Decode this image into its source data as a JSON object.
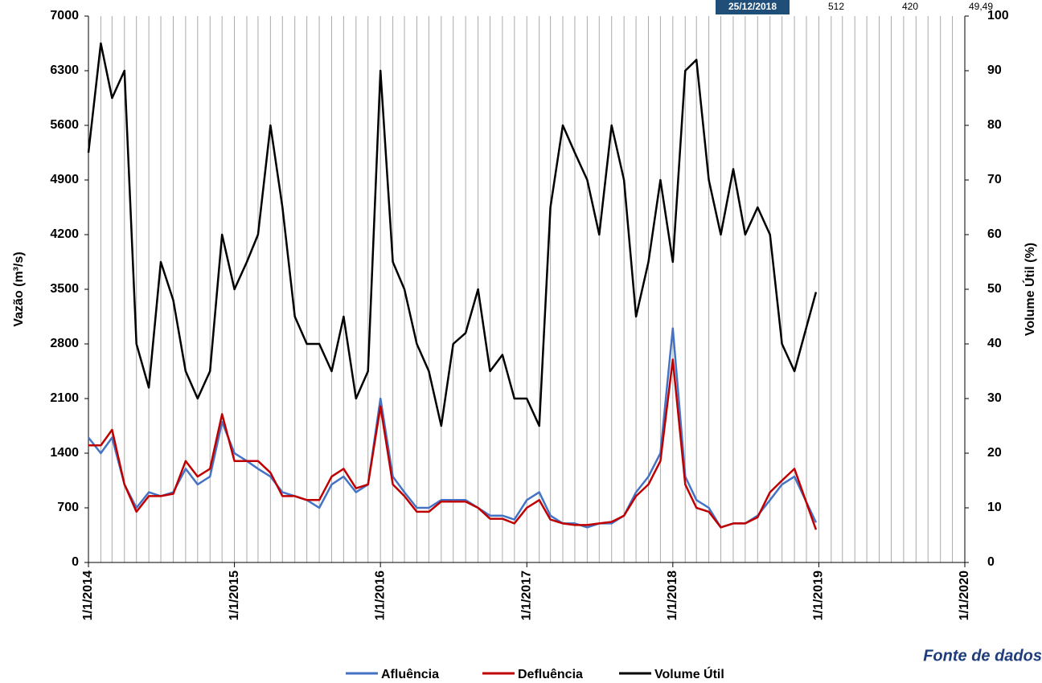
{
  "chart_data": {
    "type": "line",
    "y_label": "Vazão (m³/s)",
    "y2_label": "Volume Útil (%)",
    "annotation": "Fonte de dados",
    "readout": {
      "date": "25/12/2018",
      "values": [
        512,
        420,
        49.49
      ],
      "value_labels": [
        "512",
        "420",
        "49,49"
      ]
    },
    "x": [
      "2014-01-01",
      "2014-02-01",
      "2014-03-01",
      "2014-04-01",
      "2014-05-01",
      "2014-06-01",
      "2014-07-01",
      "2014-08-01",
      "2014-09-01",
      "2014-10-01",
      "2014-11-01",
      "2014-12-01",
      "2015-01-01",
      "2015-02-01",
      "2015-03-01",
      "2015-04-01",
      "2015-05-01",
      "2015-06-01",
      "2015-07-01",
      "2015-08-01",
      "2015-09-01",
      "2015-10-01",
      "2015-11-01",
      "2015-12-01",
      "2016-01-01",
      "2016-02-01",
      "2016-03-01",
      "2016-04-01",
      "2016-05-01",
      "2016-06-01",
      "2016-07-01",
      "2016-08-01",
      "2016-09-01",
      "2016-10-01",
      "2016-11-01",
      "2016-12-01",
      "2017-01-01",
      "2017-02-01",
      "2017-03-01",
      "2017-04-01",
      "2017-05-01",
      "2017-06-01",
      "2017-07-01",
      "2017-08-01",
      "2017-09-01",
      "2017-10-01",
      "2017-11-01",
      "2017-12-01",
      "2018-01-01",
      "2018-02-01",
      "2018-03-01",
      "2018-04-01",
      "2018-05-01",
      "2018-06-01",
      "2018-07-01",
      "2018-08-01",
      "2018-09-01",
      "2018-10-01",
      "2018-11-01",
      "2018-12-25"
    ],
    "series": [
      {
        "name": "Afluência",
        "color": "#4472c4",
        "values": [
          1600,
          1400,
          1600,
          1000,
          700,
          900,
          850,
          900,
          1200,
          1000,
          1100,
          1800,
          1400,
          1300,
          1200,
          1100,
          900,
          850,
          800,
          700,
          1000,
          1100,
          900,
          1000,
          2100,
          1100,
          900,
          700,
          700,
          800,
          800,
          800,
          700,
          600,
          600,
          550,
          800,
          900,
          600,
          500,
          500,
          450,
          500,
          500,
          600,
          900,
          1100,
          1400,
          3000,
          1100,
          800,
          700,
          450,
          500,
          500,
          600,
          800,
          1000,
          1100,
          512
        ]
      },
      {
        "name": "Defluência",
        "color": "#c00000",
        "values": [
          1500,
          1500,
          1700,
          1000,
          650,
          850,
          850,
          880,
          1300,
          1100,
          1200,
          1900,
          1300,
          1300,
          1300,
          1150,
          850,
          850,
          800,
          800,
          1100,
          1200,
          950,
          1000,
          2000,
          1000,
          850,
          650,
          650,
          780,
          780,
          780,
          700,
          560,
          560,
          500,
          700,
          800,
          550,
          500,
          480,
          480,
          500,
          520,
          600,
          850,
          1000,
          1300,
          2600,
          1000,
          700,
          650,
          450,
          500,
          500,
          580,
          900,
          1050,
          1200,
          420
        ]
      },
      {
        "name": "Volume Útil",
        "color": "#000000",
        "axis": "y2",
        "values": [
          75,
          95,
          85,
          90,
          40,
          32,
          55,
          48,
          35,
          30,
          35,
          60,
          50,
          55,
          60,
          80,
          65,
          45,
          40,
          40,
          35,
          45,
          30,
          35,
          90,
          55,
          50,
          40,
          35,
          25,
          40,
          42,
          50,
          35,
          38,
          30,
          30,
          25,
          65,
          80,
          75,
          70,
          60,
          80,
          70,
          45,
          55,
          70,
          55,
          90,
          92,
          70,
          60,
          72,
          60,
          65,
          60,
          40,
          35,
          49.49
        ]
      }
    ],
    "xlim": [
      "2014-01-01",
      "2020-01-01"
    ],
    "xticks": [
      {
        "value": "2014-01-01",
        "label": "1/1/2014"
      },
      {
        "value": "2015-01-01",
        "label": "1/1/2015"
      },
      {
        "value": "2016-01-01",
        "label": "1/1/2016"
      },
      {
        "value": "2017-01-01",
        "label": "1/1/2017"
      },
      {
        "value": "2018-01-01",
        "label": "1/1/2018"
      },
      {
        "value": "2019-01-01",
        "label": "1/1/2019"
      },
      {
        "value": "2020-01-01",
        "label": "1/1/2020"
      }
    ],
    "x_grid_interval_months": 1,
    "ylim": [
      0,
      7000
    ],
    "yticks": [
      0,
      700,
      1400,
      2100,
      2800,
      3500,
      4200,
      4900,
      5600,
      6300,
      7000
    ],
    "y2lim": [
      0,
      100
    ],
    "y2ticks": [
      0,
      10,
      20,
      30,
      40,
      50,
      60,
      70,
      80,
      90,
      100
    ]
  }
}
